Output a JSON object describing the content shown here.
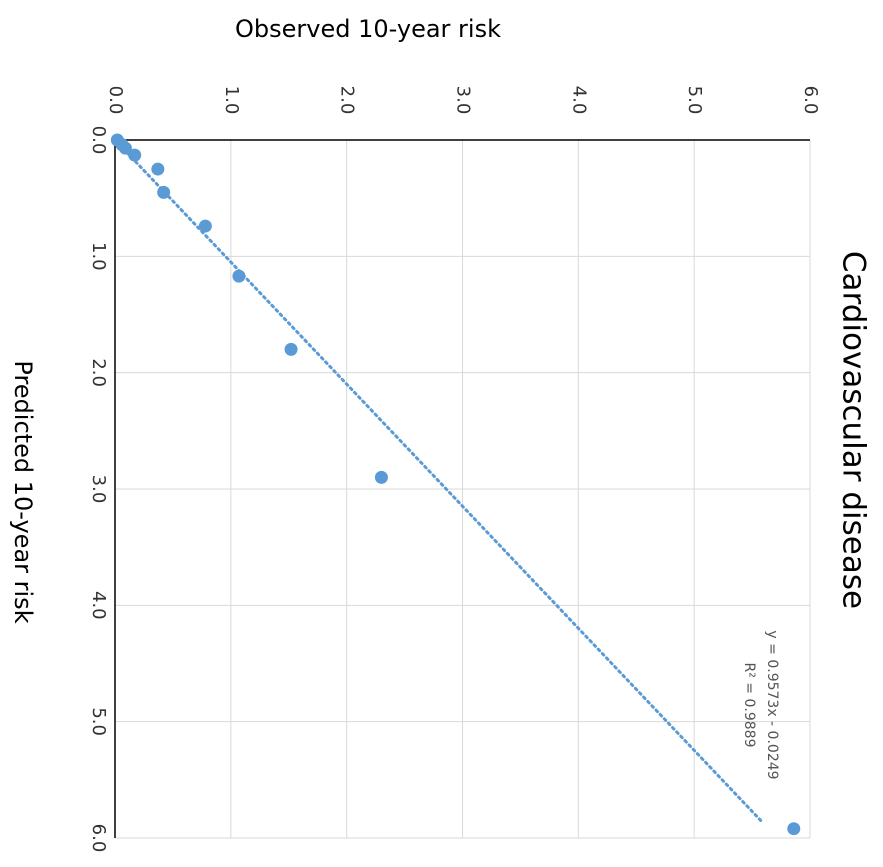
{
  "chart_data": {
    "type": "scatter",
    "title": "Cardiovascular disease",
    "xlabel": "Predicted 10-year risk",
    "ylabel": "Observed 10-year risk",
    "xlim": [
      0,
      6
    ],
    "ylim": [
      0,
      6
    ],
    "x_ticks": [
      "0.0",
      "1.0",
      "2.0",
      "3.0",
      "4.0",
      "5.0",
      "6.0"
    ],
    "y_ticks": [
      "0.0",
      "1.0",
      "2.0",
      "3.0",
      "4.0",
      "5.0",
      "6.0"
    ],
    "grid": true,
    "points": [
      {
        "x": 0.0,
        "y": 0.02
      },
      {
        "x": 0.04,
        "y": 0.06
      },
      {
        "x": 0.07,
        "y": 0.09
      },
      {
        "x": 0.13,
        "y": 0.17
      },
      {
        "x": 0.25,
        "y": 0.37
      },
      {
        "x": 0.45,
        "y": 0.42
      },
      {
        "x": 0.74,
        "y": 0.78
      },
      {
        "x": 1.17,
        "y": 1.07
      },
      {
        "x": 1.8,
        "y": 1.52
      },
      {
        "x": 2.9,
        "y": 2.3
      },
      {
        "x": 5.92,
        "y": 5.86
      }
    ],
    "trendline": {
      "style": "dotted",
      "slope": 0.9573,
      "intercept": -0.0249,
      "x_range": [
        0.0,
        5.85
      ],
      "equation_label": "y = 0.9573x - 0.0249",
      "r2_label": "R² = 0.9889"
    },
    "colors": {
      "points": "#5B9BD5",
      "trendline": "#5B9BD5",
      "grid": "#D9D9D9",
      "axis": "#000000"
    }
  }
}
